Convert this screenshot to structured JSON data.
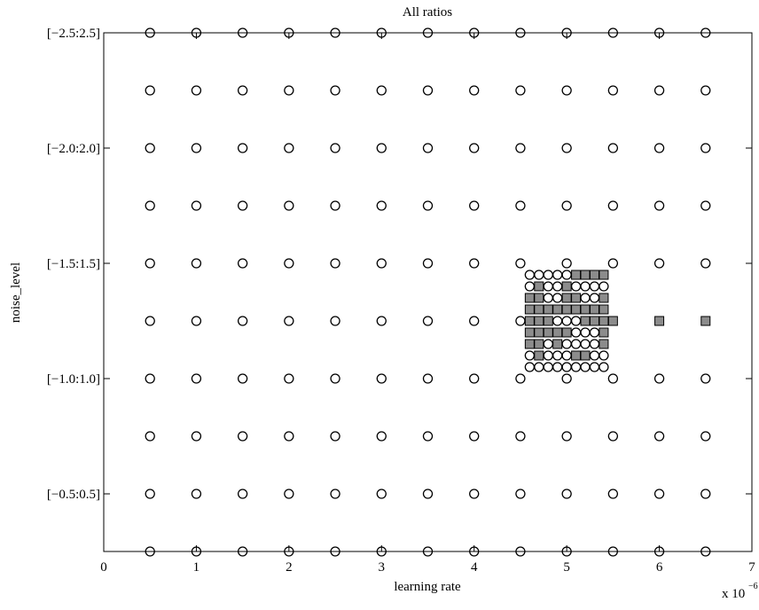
{
  "chart_data": {
    "type": "scatter",
    "title": "All ratios",
    "x_label": "learning rate",
    "y_label": "noise_level",
    "x_multiplier": {
      "base": "x 10",
      "exponent": "−6"
    },
    "xlim": [
      0,
      7
    ],
    "xticks": [
      0,
      1,
      2,
      3,
      4,
      5,
      6,
      7
    ],
    "ylim": [
      0.25,
      2.5
    ],
    "yticks": [
      {
        "value": 2.5,
        "label": "[−2.5:2.5]"
      },
      {
        "value": 2.0,
        "label": "[−2.0:2.0]"
      },
      {
        "value": 1.5,
        "label": "[−1.5:1.5]"
      },
      {
        "value": 1.0,
        "label": "[−1.0:1.0]"
      },
      {
        "value": 0.5,
        "label": "[−0.5:0.5]"
      }
    ],
    "series": [
      {
        "marker": "circle",
        "color": "#000000",
        "x": [
          0.5,
          1,
          1.5,
          2,
          2.5,
          3,
          3.5,
          4,
          4.5,
          5,
          5.5,
          6,
          6.5,
          0.5,
          1,
          1.5,
          2,
          2.5,
          3,
          3.5,
          4,
          4.5,
          5,
          5.5,
          6,
          6.5,
          0.5,
          1,
          1.5,
          2,
          2.5,
          3,
          3.5,
          4,
          4.5,
          5,
          5.5,
          6,
          6.5,
          0.5,
          1,
          1.5,
          2,
          2.5,
          3,
          3.5,
          4,
          4.5,
          5,
          5.5,
          6,
          6.5,
          0.5,
          1,
          1.5,
          2,
          2.5,
          3,
          3.5,
          4,
          4.5,
          5,
          5.5,
          6,
          6.5,
          0.5,
          1,
          1.5,
          2,
          2.5,
          3,
          3.5,
          4,
          4.5,
          0.5,
          1,
          1.5,
          2,
          2.5,
          3,
          3.5,
          4,
          4.5,
          5,
          5.5,
          6,
          6.5,
          0.5,
          1,
          1.5,
          2,
          2.5,
          3,
          3.5,
          4,
          4.5,
          5,
          5.5,
          6,
          6.5,
          0.5,
          1,
          1.5,
          2,
          2.5,
          3,
          3.5,
          4,
          4.5,
          5,
          5.5,
          6,
          6.5,
          0.5,
          1,
          1.5,
          2,
          2.5,
          3,
          3.5,
          4,
          4.5,
          5,
          5.5,
          6,
          6.5,
          4.6,
          4.7,
          4.8,
          4.9,
          5,
          4.6,
          4.8,
          4.9,
          5.1,
          5.2,
          5.3,
          5.4,
          4.8,
          4.9,
          5.2,
          5.3,
          4.9,
          5,
          5.1,
          5.1,
          5.2,
          5.3,
          4.8,
          5,
          5.1,
          5.2,
          5.3,
          4.6,
          4.8,
          4.9,
          5,
          5.3,
          5.4,
          4.6,
          4.7,
          4.8,
          4.9,
          5,
          5.1,
          5.2,
          5.3,
          5.4
        ],
        "y": [
          2.5,
          2.5,
          2.5,
          2.5,
          2.5,
          2.5,
          2.5,
          2.5,
          2.5,
          2.5,
          2.5,
          2.5,
          2.5,
          2.25,
          2.25,
          2.25,
          2.25,
          2.25,
          2.25,
          2.25,
          2.25,
          2.25,
          2.25,
          2.25,
          2.25,
          2.25,
          2,
          2,
          2,
          2,
          2,
          2,
          2,
          2,
          2,
          2,
          2,
          2,
          2,
          1.75,
          1.75,
          1.75,
          1.75,
          1.75,
          1.75,
          1.75,
          1.75,
          1.75,
          1.75,
          1.75,
          1.75,
          1.75,
          1.5,
          1.5,
          1.5,
          1.5,
          1.5,
          1.5,
          1.5,
          1.5,
          1.5,
          1.5,
          1.5,
          1.5,
          1.5,
          1.25,
          1.25,
          1.25,
          1.25,
          1.25,
          1.25,
          1.25,
          1.25,
          1.25,
          1,
          1,
          1,
          1,
          1,
          1,
          1,
          1,
          1,
          1,
          1,
          1,
          1,
          0.75,
          0.75,
          0.75,
          0.75,
          0.75,
          0.75,
          0.75,
          0.75,
          0.75,
          0.75,
          0.75,
          0.75,
          0.75,
          0.5,
          0.5,
          0.5,
          0.5,
          0.5,
          0.5,
          0.5,
          0.5,
          0.5,
          0.5,
          0.5,
          0.5,
          0.5,
          0.25,
          0.25,
          0.25,
          0.25,
          0.25,
          0.25,
          0.25,
          0.25,
          0.25,
          0.25,
          0.25,
          0.25,
          0.25,
          1.45,
          1.45,
          1.45,
          1.45,
          1.45,
          1.4,
          1.4,
          1.4,
          1.4,
          1.4,
          1.4,
          1.4,
          1.35,
          1.35,
          1.35,
          1.35,
          1.25,
          1.25,
          1.25,
          1.2,
          1.2,
          1.2,
          1.15,
          1.15,
          1.15,
          1.15,
          1.15,
          1.1,
          1.1,
          1.1,
          1.1,
          1.1,
          1.1,
          1.05,
          1.05,
          1.05,
          1.05,
          1.05,
          1.05,
          1.05,
          1.05,
          1.05
        ]
      },
      {
        "marker": "square",
        "color": "#8c8c8c",
        "x": [
          5.1,
          5.2,
          5.3,
          5.4,
          4.7,
          5,
          4.6,
          4.7,
          5,
          5.1,
          5.4,
          4.6,
          4.7,
          4.8,
          4.9,
          5,
          5.1,
          5.2,
          5.3,
          5.4,
          4.6,
          4.7,
          4.8,
          5.2,
          5.3,
          5.4,
          5.5,
          6,
          6.5,
          4.6,
          4.7,
          4.8,
          4.9,
          5,
          5.4,
          4.6,
          4.7,
          4.9,
          5.4,
          4.7,
          5.1,
          5.2
        ],
        "y": [
          1.45,
          1.45,
          1.45,
          1.45,
          1.4,
          1.4,
          1.35,
          1.35,
          1.35,
          1.35,
          1.35,
          1.3,
          1.3,
          1.3,
          1.3,
          1.3,
          1.3,
          1.3,
          1.3,
          1.3,
          1.25,
          1.25,
          1.25,
          1.25,
          1.25,
          1.25,
          1.25,
          1.25,
          1.25,
          1.2,
          1.2,
          1.2,
          1.2,
          1.2,
          1.2,
          1.15,
          1.15,
          1.15,
          1.15,
          1.1,
          1.1,
          1.1
        ]
      }
    ]
  }
}
